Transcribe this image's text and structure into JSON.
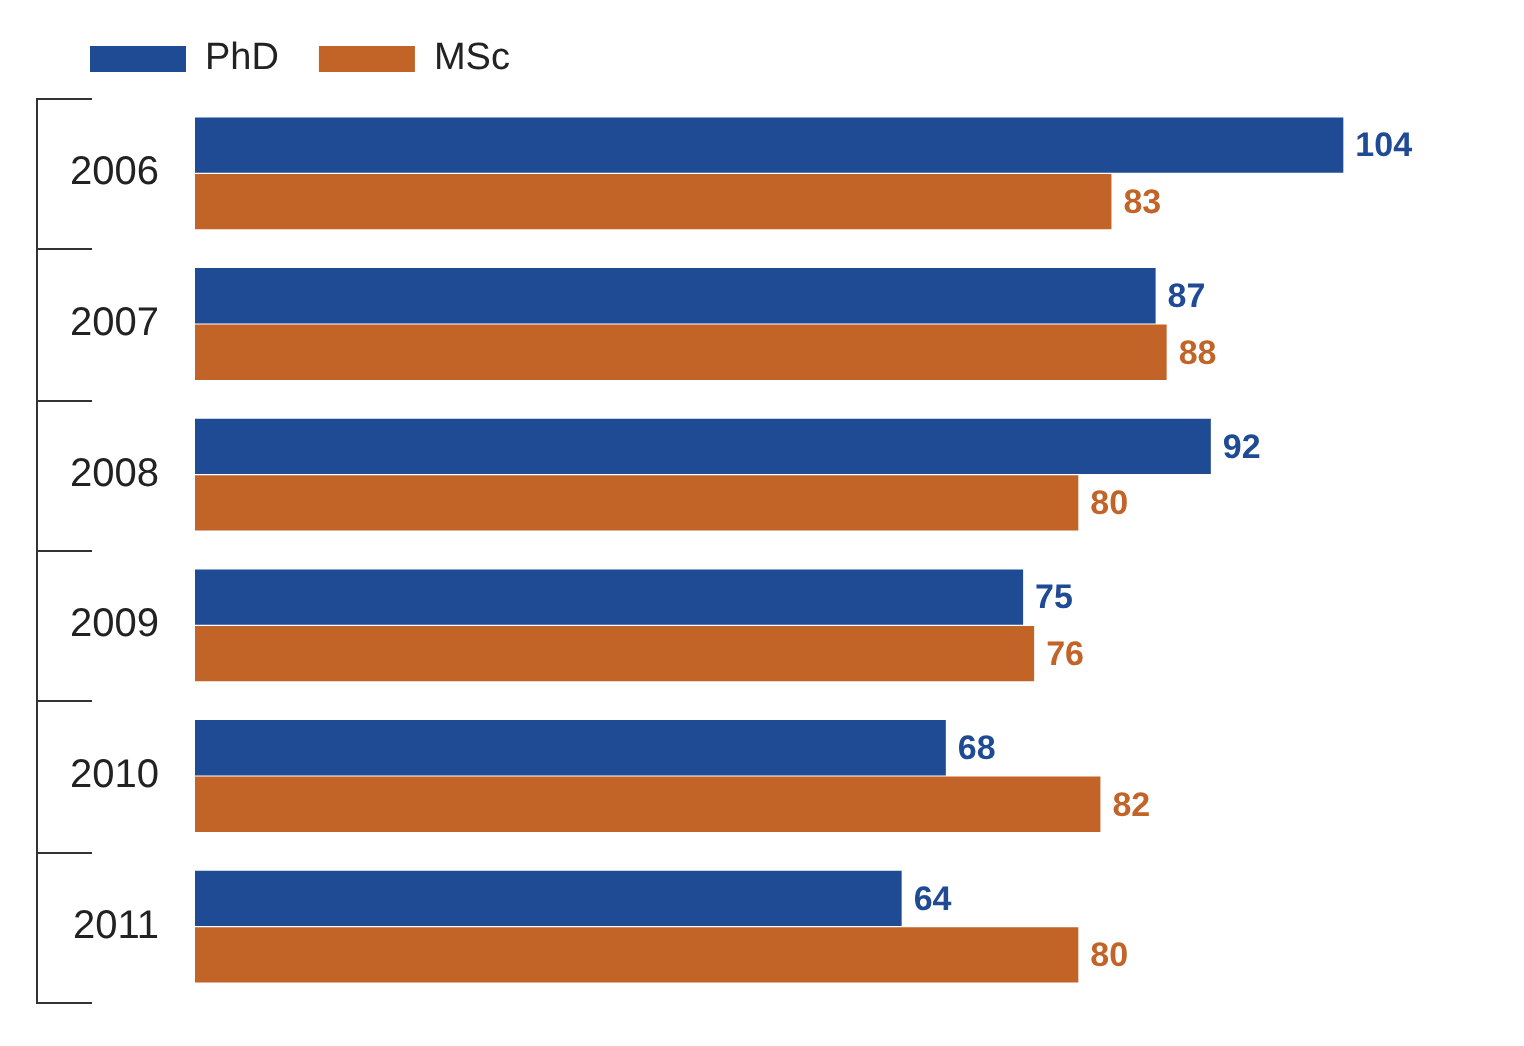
{
  "chart_data": {
    "type": "bar",
    "orientation": "horizontal",
    "categories": [
      "2006",
      "2007",
      "2008",
      "2009",
      "2010",
      "2011"
    ],
    "series": [
      {
        "name": "PhD",
        "color": "#1f4a94",
        "values": [
          104,
          87,
          92,
          75,
          68,
          64
        ]
      },
      {
        "name": "MSc",
        "color": "#c26328",
        "values": [
          83,
          88,
          80,
          76,
          82,
          80
        ]
      }
    ],
    "data_labels": true,
    "legend": "top left",
    "tick_labels": "y"
  }
}
